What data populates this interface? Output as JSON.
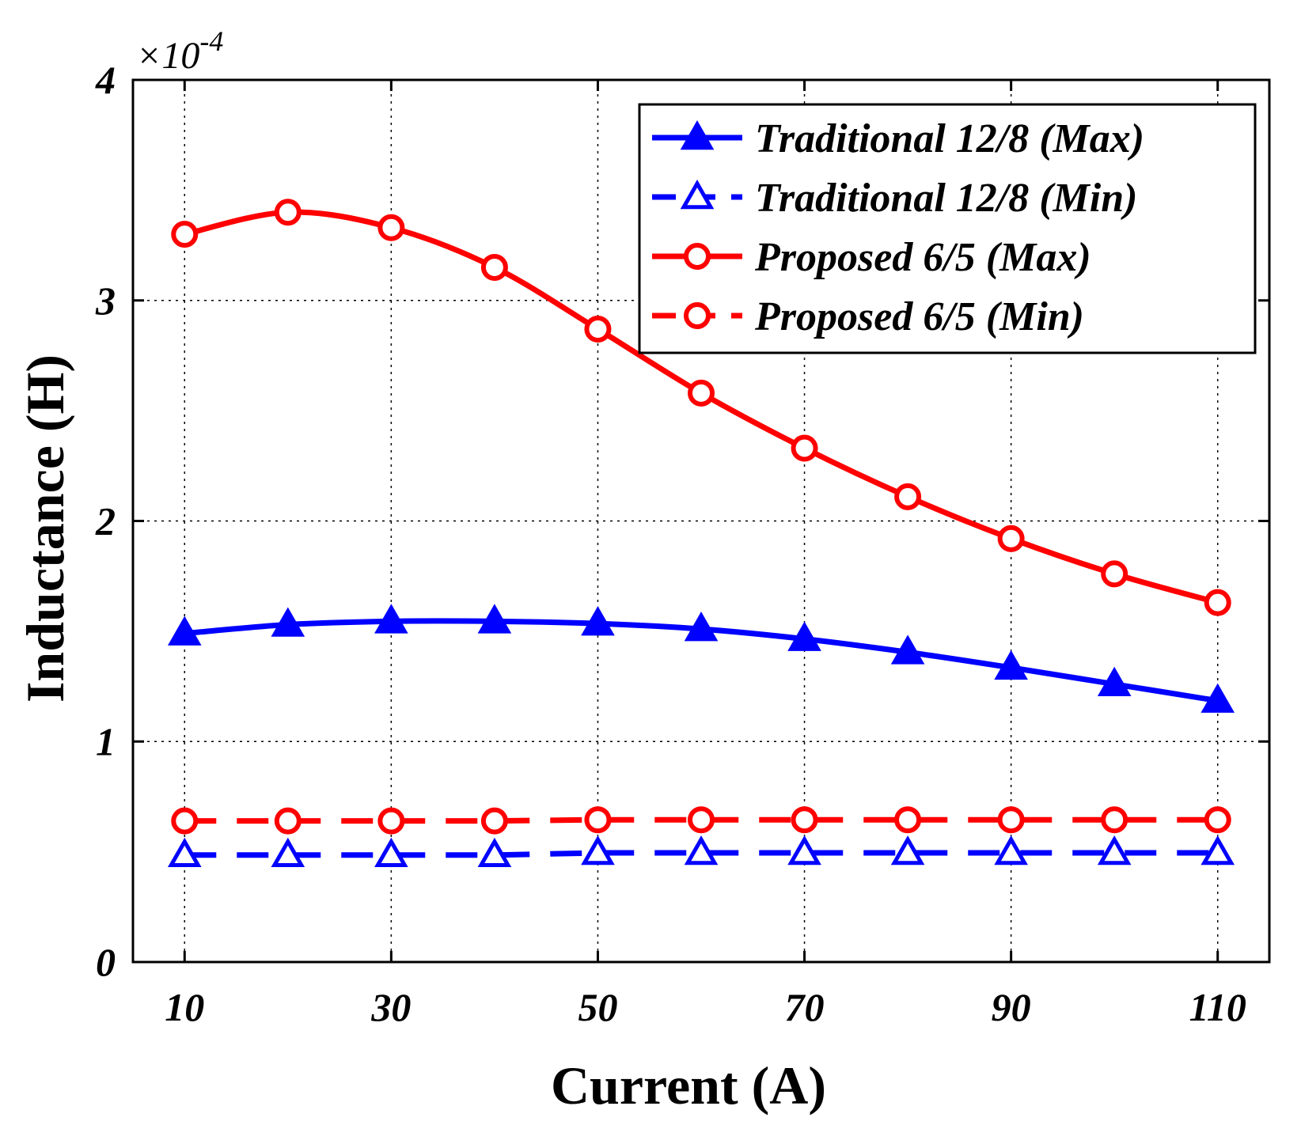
{
  "chart_data": {
    "type": "line",
    "title": "",
    "xlabel": "Current (A)",
    "ylabel": "Inductance (H)",
    "y_multiplier": {
      "base": "×10",
      "exponent": "-4"
    },
    "xlim": [
      5,
      115
    ],
    "ylim": [
      0,
      4
    ],
    "xticks": [
      10,
      30,
      50,
      70,
      90,
      110
    ],
    "yticks": [
      0,
      1,
      2,
      3,
      4
    ],
    "xtick_labels": [
      "10",
      "30",
      "50",
      "70",
      "90",
      "110"
    ],
    "ytick_labels": [
      "0",
      "1",
      "2",
      "3",
      "4"
    ],
    "grid": true,
    "legend_position": "top-right",
    "x": [
      10,
      20,
      30,
      40,
      50,
      60,
      70,
      80,
      90,
      100,
      110
    ],
    "series": [
      {
        "name": "Traditional 12/8 (Max)",
        "color": "#0000ff",
        "line": "solid",
        "marker": "triangle-filled",
        "values": [
          1.49,
          1.53,
          1.545,
          1.545,
          1.535,
          1.51,
          1.465,
          1.405,
          1.335,
          1.26,
          1.185
        ]
      },
      {
        "name": "Traditional 12/8 (Min)",
        "color": "#0000ff",
        "line": "dashed",
        "marker": "triangle-open",
        "values": [
          0.485,
          0.485,
          0.485,
          0.485,
          0.495,
          0.495,
          0.495,
          0.495,
          0.495,
          0.495,
          0.495
        ]
      },
      {
        "name": "Proposed 6/5 (Max)",
        "color": "#ff0000",
        "line": "solid",
        "marker": "circle-open",
        "values": [
          3.3,
          3.4,
          3.33,
          3.15,
          2.87,
          2.58,
          2.33,
          2.11,
          1.92,
          1.76,
          1.63
        ]
      },
      {
        "name": "Proposed 6/5 (Min)",
        "color": "#ff0000",
        "line": "dashed",
        "marker": "circle-open",
        "values": [
          0.64,
          0.64,
          0.64,
          0.64,
          0.645,
          0.645,
          0.645,
          0.645,
          0.645,
          0.645,
          0.645
        ]
      }
    ]
  }
}
